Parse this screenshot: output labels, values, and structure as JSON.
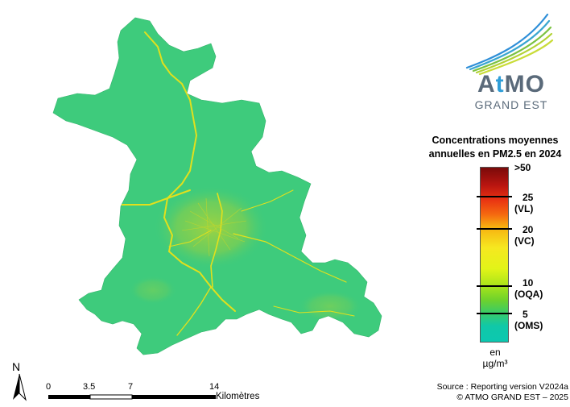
{
  "logo": {
    "brand_prefix": "A",
    "brand_t": "t",
    "brand_suffix": "MO",
    "subtitle": "GRAND EST"
  },
  "legend": {
    "title_line1": "Concentrations moyennes",
    "title_line2": "annuelles en PM2.5 en 2024",
    "labels": [
      {
        "value": ">50",
        "tag": ""
      },
      {
        "value": "25",
        "tag": "(VL)"
      },
      {
        "value": "20",
        "tag": "(VC)"
      },
      {
        "value": "10",
        "tag": "(OQA)"
      },
      {
        "value": "5",
        "tag": "(OMS)"
      }
    ],
    "unit_line1": "en",
    "unit_line2": "µg/m³"
  },
  "north_arrow": {
    "letter": "N"
  },
  "scale_bar": {
    "ticks": [
      "0",
      "3.5",
      "7",
      "14"
    ],
    "unit": "Kilomètres"
  },
  "source": {
    "line1": "Source : Reporting version V2024a",
    "line2": "© ATMO GRAND EST – 2025"
  },
  "colors": {
    "background_level": "#3ecb7c",
    "road": "#e8e01a",
    "urban": "#a8d83a"
  }
}
